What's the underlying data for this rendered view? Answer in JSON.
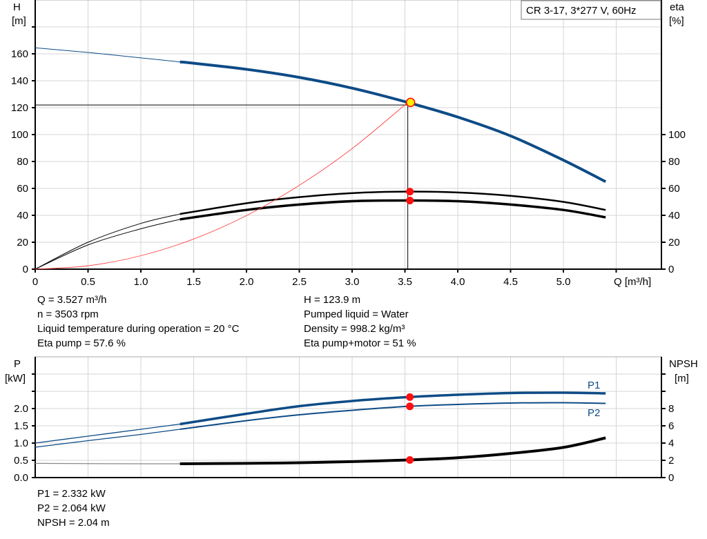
{
  "chart_data": [
    {
      "type": "line",
      "title": "CR 3-17, 3*277 V, 60Hz",
      "xlabel": "Q [m³/h]",
      "ylabel": [
        "H",
        "[m]"
      ],
      "y2label": [
        "eta",
        "[%]"
      ],
      "xlim": [
        0,
        5.93
      ],
      "ylim": [
        0,
        200
      ],
      "y2lim": [
        0,
        200
      ],
      "grid": true,
      "x_ticks": [
        "0",
        "0.5",
        "1.0",
        "1.5",
        "2.0",
        "2.5",
        "3.0",
        "3.5",
        "4.0",
        "4.5",
        "5.0"
      ],
      "y_ticks": [
        "0",
        "20",
        "40",
        "60",
        "80",
        "100",
        "120",
        "140",
        "160"
      ],
      "y2_ticks": [
        "0",
        "20",
        "40",
        "60",
        "80",
        "100"
      ],
      "operating_point": {
        "q": 3.527,
        "h": 123.9,
        "eta_pump": 57.6,
        "eta_total": 51
      },
      "reference_line_h": 122,
      "series": [
        {
          "key": "head",
          "axis": "left",
          "color": "#0d4b86",
          "x": [
            0,
            0.5,
            1.0,
            1.37,
            1.5,
            2.0,
            2.5,
            3.0,
            3.527,
            4.0,
            4.5,
            5.0,
            5.4
          ],
          "y": [
            164.5,
            161,
            157,
            154,
            153,
            148.5,
            142.5,
            134.5,
            123.9,
            113,
            99,
            81,
            65
          ]
        },
        {
          "key": "eta-pump",
          "axis": "right",
          "color": "#000000",
          "x": [
            0,
            0.5,
            1.0,
            1.37,
            2.0,
            2.5,
            3.0,
            3.527,
            4.0,
            4.5,
            5.0,
            5.4
          ],
          "y": [
            0,
            20,
            34,
            41,
            49,
            53.5,
            56.5,
            57.6,
            57,
            54.5,
            50,
            44
          ]
        },
        {
          "key": "eta-pump-motor",
          "axis": "right",
          "color": "#000000",
          "x": [
            0,
            0.5,
            1.0,
            1.37,
            2.0,
            2.5,
            3.0,
            3.527,
            4.0,
            4.5,
            5.0,
            5.4
          ],
          "y": [
            0,
            18,
            30,
            37,
            44,
            48,
            50.5,
            51,
            50.5,
            48,
            44,
            38.5
          ]
        },
        {
          "key": "system-curve",
          "axis": "left",
          "color": "#ff4040",
          "x": [
            0,
            0.5,
            1.0,
            1.5,
            2.0,
            2.5,
            3.0,
            3.527
          ],
          "y": [
            0,
            2.5,
            10,
            22.4,
            39.8,
            62.3,
            89.6,
            123.9
          ]
        }
      ]
    },
    {
      "type": "line",
      "ylabel": [
        "P",
        "[kW]"
      ],
      "y2label": [
        "NPSH",
        "[m]"
      ],
      "xlim": [
        0,
        5.93
      ],
      "ylim": [
        0,
        3.5
      ],
      "y2lim": [
        0,
        14
      ],
      "grid": true,
      "y_ticks": [
        "0.0",
        "0.5",
        "1.0",
        "1.5",
        "2.0"
      ],
      "y2_ticks": [
        "0",
        "2",
        "4",
        "6",
        "8"
      ],
      "operating_point": {
        "q": 3.527,
        "p1": 2.332,
        "p2": 2.064,
        "npsh": 2.04
      },
      "series": [
        {
          "key": "p1",
          "name": "P1",
          "axis": "left",
          "color": "#0d4b86",
          "x": [
            0,
            0.5,
            1.0,
            1.37,
            2.0,
            2.5,
            3.0,
            3.527,
            4.0,
            4.5,
            5.0,
            5.4
          ],
          "y": [
            1.0,
            1.2,
            1.4,
            1.55,
            1.85,
            2.07,
            2.22,
            2.332,
            2.4,
            2.45,
            2.46,
            2.44
          ]
        },
        {
          "key": "p2",
          "name": "P2",
          "axis": "left",
          "color": "#0d4b86",
          "x": [
            0,
            0.5,
            1.0,
            1.37,
            2.0,
            2.5,
            3.0,
            3.527,
            4.0,
            4.5,
            5.0,
            5.4
          ],
          "y": [
            0.88,
            1.07,
            1.25,
            1.4,
            1.65,
            1.82,
            1.95,
            2.064,
            2.12,
            2.16,
            2.17,
            2.15
          ]
        },
        {
          "key": "npsh",
          "axis": "right",
          "color": "#000000",
          "x": [
            0,
            0.5,
            1.0,
            1.37,
            2.0,
            2.5,
            3.0,
            3.527,
            4.0,
            4.5,
            5.0,
            5.4
          ],
          "y": [
            1.65,
            1.62,
            1.6,
            1.6,
            1.65,
            1.72,
            1.85,
            2.04,
            2.3,
            2.8,
            3.5,
            4.6
          ]
        }
      ]
    }
  ],
  "info_top_left": [
    "Q = 3.527 m³/h",
    "n = 3503 rpm",
    "Liquid temperature during operation = 20 °C",
    "Eta pump = 57.6 %"
  ],
  "info_top_right": [
    "H = 123.9 m",
    "Pumped liquid = Water",
    "Density = 998.2 kg/m³",
    "Eta pump+motor = 51 %"
  ],
  "info_bottom": [
    "P1 = 2.332 kW",
    "P2 = 2.064 kW",
    "NPSH = 2.04 m"
  ]
}
